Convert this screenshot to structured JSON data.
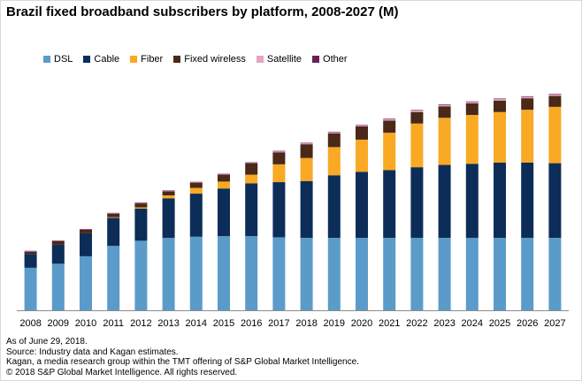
{
  "chart_data": {
    "type": "bar",
    "stacked": true,
    "title": "Brazil fixed broadband subscribers by platform, 2008-2027 (M)",
    "categories": [
      "2008",
      "2009",
      "2010",
      "2011",
      "2012",
      "2013",
      "2014",
      "2015",
      "2016",
      "2017",
      "2018",
      "2019",
      "2020",
      "2021",
      "2022",
      "2023",
      "2024",
      "2025",
      "2026",
      "2027"
    ],
    "series": [
      {
        "name": "DSL",
        "color": "#5b9bc9",
        "values": [
          7.4,
          8.1,
          9.4,
          11.2,
          12.1,
          12.6,
          12.8,
          12.9,
          12.9,
          12.7,
          12.6,
          12.6,
          12.6,
          12.6,
          12.6,
          12.6,
          12.6,
          12.6,
          12.6,
          12.6
        ]
      },
      {
        "name": "Cable",
        "color": "#0d2d59",
        "values": [
          2.4,
          3.3,
          4.0,
          4.9,
          5.6,
          6.9,
          7.5,
          8.3,
          9.2,
          9.6,
          9.9,
          10.9,
          11.5,
          11.8,
          12.3,
          12.7,
          12.9,
          13.1,
          13.1,
          13.0
        ]
      },
      {
        "name": "Fiber",
        "color": "#f9a924",
        "values": [
          0.0,
          0.0,
          0.0,
          0.1,
          0.2,
          0.5,
          1.0,
          1.2,
          1.5,
          3.1,
          4.0,
          4.9,
          5.6,
          6.5,
          7.6,
          8.2,
          8.5,
          8.8,
          9.2,
          9.8
        ]
      },
      {
        "name": "Fixed wireless",
        "color": "#4a2918",
        "values": [
          0.4,
          0.6,
          0.6,
          0.6,
          0.7,
          0.7,
          0.9,
          1.2,
          2.0,
          2.1,
          2.4,
          2.4,
          2.3,
          2.1,
          2.0,
          2.0,
          2.0,
          2.0,
          2.0,
          1.9
        ]
      },
      {
        "name": "Satellite",
        "color": "#e6a3c2",
        "values": [
          0.1,
          0.1,
          0.1,
          0.1,
          0.1,
          0.1,
          0.1,
          0.1,
          0.1,
          0.2,
          0.2,
          0.2,
          0.2,
          0.3,
          0.3,
          0.3,
          0.3,
          0.3,
          0.3,
          0.3
        ]
      },
      {
        "name": "Other",
        "color": "#6b1f5a",
        "values": [
          0.05,
          0.05,
          0.05,
          0.05,
          0.05,
          0.05,
          0.05,
          0.05,
          0.05,
          0.05,
          0.05,
          0.05,
          0.05,
          0.05,
          0.05,
          0.05,
          0.05,
          0.05,
          0.05,
          0.05
        ]
      }
    ],
    "ylim": [
      0,
      40
    ],
    "grid": false,
    "y_axis_visible": false,
    "legend_position": "top-left"
  },
  "notes": [
    "As of June 29, 2018.",
    "Source: Industry data and Kagan estimates.",
    "Kagan, a media research group within the TMT offering of S&P Global Market Intelligence.",
    "© 2018 S&P Global Market Intelligence. All rights reserved."
  ]
}
